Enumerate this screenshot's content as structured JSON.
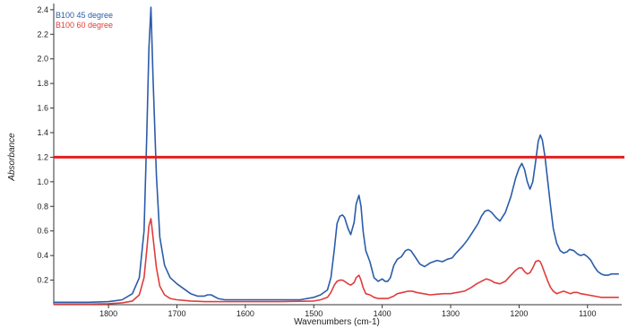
{
  "chart_data": {
    "type": "line",
    "title": "",
    "xlabel": "Wavenumbers (cm-1)",
    "ylabel": "Absorbance",
    "xlim": [
      1050,
      1880
    ],
    "ylim": [
      0,
      2.45
    ],
    "x_reversed": true,
    "grid": false,
    "legend_position": "top-left",
    "x_ticks": [
      {
        "value": 1800,
        "label": "1800"
      },
      {
        "value": 1700,
        "label": "1700"
      },
      {
        "value": 1600,
        "label": "1600"
      },
      {
        "value": 1500,
        "label": "1500"
      },
      {
        "value": 1400,
        "label": "1400"
      },
      {
        "value": 1300,
        "label": "1300"
      },
      {
        "value": 1200,
        "label": "1200"
      },
      {
        "value": 1100,
        "label": "1100"
      }
    ],
    "y_ticks": [
      {
        "value": 0.2,
        "label": "0.2"
      },
      {
        "value": 0.4,
        "label": "0.4"
      },
      {
        "value": 0.6,
        "label": "0.6"
      },
      {
        "value": 0.8,
        "label": "0.8"
      },
      {
        "value": 1.0,
        "label": "1.0"
      },
      {
        "value": 1.2,
        "label": "1.2"
      },
      {
        "value": 1.4,
        "label": "1.4"
      },
      {
        "value": 1.6,
        "label": "1.6"
      },
      {
        "value": 1.8,
        "label": "1.8"
      },
      {
        "value": 2.0,
        "label": "2.0"
      },
      {
        "value": 2.2,
        "label": "2.2"
      },
      {
        "value": 2.4,
        "label": "2.4"
      }
    ],
    "hline": {
      "y": 1.2,
      "color": "#e02020"
    },
    "series": [
      {
        "name": "B100 45 degree",
        "color": "#2a5caa",
        "x": [
          1880,
          1830,
          1800,
          1780,
          1765,
          1755,
          1748,
          1744,
          1741,
          1738,
          1735,
          1730,
          1725,
          1718,
          1710,
          1700,
          1690,
          1680,
          1670,
          1660,
          1655,
          1650,
          1640,
          1630,
          1600,
          1550,
          1520,
          1500,
          1490,
          1480,
          1475,
          1470,
          1466,
          1462,
          1458,
          1455,
          1450,
          1446,
          1441,
          1438,
          1434,
          1431,
          1428,
          1424,
          1418,
          1412,
          1406,
          1400,
          1396,
          1392,
          1388,
          1383,
          1378,
          1372,
          1366,
          1362,
          1358,
          1352,
          1345,
          1338,
          1330,
          1320,
          1312,
          1305,
          1298,
          1292,
          1282,
          1275,
          1268,
          1260,
          1255,
          1250,
          1245,
          1240,
          1234,
          1228,
          1220,
          1212,
          1205,
          1200,
          1196,
          1192,
          1188,
          1184,
          1180,
          1176,
          1172,
          1169,
          1166,
          1162,
          1158,
          1154,
          1150,
          1145,
          1140,
          1135,
          1130,
          1126,
          1120,
          1114,
          1110,
          1105,
          1100,
          1095,
          1090,
          1085,
          1080,
          1075,
          1070,
          1065,
          1060,
          1055
        ],
        "y": [
          0.02,
          0.02,
          0.025,
          0.04,
          0.09,
          0.22,
          0.6,
          1.4,
          2.08,
          2.42,
          1.85,
          1.05,
          0.55,
          0.32,
          0.22,
          0.17,
          0.13,
          0.09,
          0.07,
          0.07,
          0.08,
          0.08,
          0.05,
          0.04,
          0.04,
          0.04,
          0.04,
          0.06,
          0.08,
          0.12,
          0.22,
          0.45,
          0.66,
          0.72,
          0.73,
          0.71,
          0.62,
          0.57,
          0.67,
          0.82,
          0.89,
          0.8,
          0.6,
          0.44,
          0.35,
          0.22,
          0.19,
          0.21,
          0.19,
          0.19,
          0.22,
          0.32,
          0.37,
          0.39,
          0.44,
          0.45,
          0.44,
          0.39,
          0.33,
          0.31,
          0.34,
          0.36,
          0.35,
          0.37,
          0.38,
          0.42,
          0.48,
          0.53,
          0.59,
          0.66,
          0.72,
          0.76,
          0.77,
          0.75,
          0.71,
          0.68,
          0.75,
          0.88,
          1.03,
          1.11,
          1.15,
          1.1,
          1.0,
          0.94,
          1.0,
          1.16,
          1.33,
          1.38,
          1.34,
          1.2,
          1.0,
          0.8,
          0.62,
          0.5,
          0.44,
          0.42,
          0.43,
          0.45,
          0.44,
          0.41,
          0.4,
          0.41,
          0.39,
          0.36,
          0.31,
          0.27,
          0.25,
          0.24,
          0.24,
          0.25,
          0.25,
          0.25
        ]
      },
      {
        "name": "B100 60 degree",
        "color": "#e03c3c",
        "x": [
          1880,
          1830,
          1800,
          1780,
          1765,
          1755,
          1748,
          1744,
          1741,
          1738,
          1735,
          1730,
          1725,
          1718,
          1710,
          1700,
          1690,
          1680,
          1670,
          1660,
          1650,
          1640,
          1630,
          1600,
          1550,
          1500,
          1490,
          1480,
          1475,
          1470,
          1466,
          1462,
          1458,
          1455,
          1450,
          1446,
          1441,
          1438,
          1434,
          1431,
          1428,
          1424,
          1418,
          1412,
          1406,
          1400,
          1392,
          1383,
          1378,
          1370,
          1362,
          1356,
          1350,
          1340,
          1330,
          1320,
          1310,
          1300,
          1290,
          1280,
          1270,
          1262,
          1255,
          1248,
          1242,
          1236,
          1228,
          1220,
          1212,
          1205,
          1200,
          1196,
          1192,
          1188,
          1184,
          1180,
          1176,
          1172,
          1169,
          1166,
          1162,
          1158,
          1154,
          1150,
          1145,
          1140,
          1135,
          1130,
          1125,
          1120,
          1115,
          1110,
          1105,
          1100,
          1095,
          1090,
          1085,
          1080,
          1075,
          1070,
          1065,
          1060,
          1055
        ],
        "y": [
          0.005,
          0.005,
          0.008,
          0.015,
          0.03,
          0.08,
          0.22,
          0.45,
          0.64,
          0.7,
          0.55,
          0.3,
          0.15,
          0.08,
          0.05,
          0.04,
          0.035,
          0.03,
          0.028,
          0.025,
          0.025,
          0.025,
          0.025,
          0.025,
          0.025,
          0.03,
          0.04,
          0.06,
          0.1,
          0.16,
          0.19,
          0.2,
          0.2,
          0.19,
          0.17,
          0.16,
          0.18,
          0.22,
          0.24,
          0.2,
          0.14,
          0.09,
          0.08,
          0.06,
          0.05,
          0.05,
          0.05,
          0.07,
          0.09,
          0.1,
          0.11,
          0.11,
          0.1,
          0.09,
          0.08,
          0.085,
          0.09,
          0.09,
          0.1,
          0.11,
          0.14,
          0.17,
          0.19,
          0.21,
          0.2,
          0.18,
          0.17,
          0.19,
          0.24,
          0.28,
          0.3,
          0.3,
          0.27,
          0.25,
          0.26,
          0.3,
          0.35,
          0.36,
          0.35,
          0.31,
          0.25,
          0.19,
          0.14,
          0.11,
          0.09,
          0.1,
          0.11,
          0.1,
          0.09,
          0.1,
          0.1,
          0.09,
          0.085,
          0.08,
          0.075,
          0.07,
          0.065,
          0.06,
          0.06,
          0.06,
          0.06,
          0.06,
          0.06
        ]
      }
    ]
  }
}
